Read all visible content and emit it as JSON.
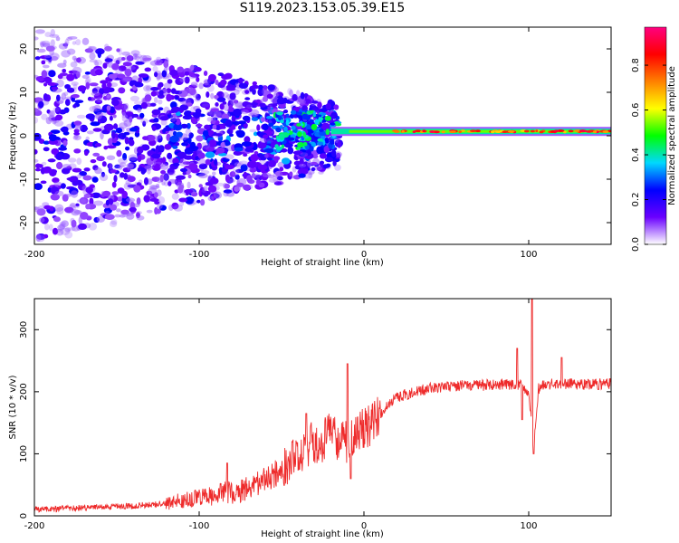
{
  "title": "S119.2023.153.05.39.E15",
  "chart_data": [
    {
      "type": "heatmap",
      "xlabel": "Height of straight line (km)",
      "ylabel": "Frequency (Hz)",
      "xlim": [
        -200,
        150
      ],
      "ylim": [
        -25,
        25
      ],
      "x_ticks": [
        -200,
        -100,
        0,
        100
      ],
      "y_ticks": [
        -20,
        -10,
        0,
        10,
        20
      ],
      "colorbar": {
        "label": "Normalized spectral amplitude",
        "range": [
          0.0,
          0.97
        ],
        "ticks": [
          0.0,
          0.2,
          0.4,
          0.6,
          0.8
        ],
        "colors": [
          "#ffffff",
          "#6a00ff",
          "#0000ff",
          "#00d8ff",
          "#00ff00",
          "#ffff00",
          "#ff8000",
          "#ff0000",
          "#ff0080"
        ]
      },
      "features": {
        "narrow_band_center_hz": 1,
        "narrow_band_x_start_km": -20,
        "diffuse_scatter_x_range_km": [
          -200,
          -20
        ]
      }
    },
    {
      "type": "line",
      "xlabel": "Height of straight line (km)",
      "ylabel": "SNR (10 * v/v)",
      "xlim": [
        -200,
        150
      ],
      "ylim": [
        0,
        350
      ],
      "x_ticks": [
        -200,
        -100,
        0,
        100
      ],
      "y_ticks": [
        0,
        100,
        200,
        300
      ],
      "series": [
        {
          "color": "#ee2b2b",
          "x": [
            -200,
            -180,
            -160,
            -140,
            -130,
            -120,
            -110,
            -100,
            -95,
            -90,
            -85,
            -80,
            -75,
            -70,
            -65,
            -60,
            -55,
            -50,
            -45,
            -40,
            -35,
            -30,
            -25,
            -20,
            -15,
            -10,
            -5,
            0,
            5,
            10,
            15,
            20,
            25,
            30,
            40,
            50,
            60,
            70,
            80,
            90,
            95,
            100,
            103,
            106,
            110,
            120,
            130,
            140,
            150
          ],
          "y": [
            10,
            12,
            14,
            16,
            18,
            20,
            25,
            28,
            30,
            35,
            40,
            35,
            40,
            45,
            50,
            60,
            65,
            75,
            90,
            100,
            110,
            120,
            120,
            140,
            120,
            120,
            130,
            140,
            150,
            165,
            180,
            190,
            195,
            200,
            205,
            208,
            210,
            210,
            212,
            212,
            210,
            200,
            105,
            205,
            212,
            213,
            212,
            212,
            213
          ]
        }
      ],
      "spikes": [
        {
          "x": -83,
          "y": 85
        },
        {
          "x": -35,
          "y": 165
        },
        {
          "x": -10,
          "y": 245
        },
        {
          "x": -8,
          "y": 60
        },
        {
          "x": 93,
          "y": 270
        },
        {
          "x": 96,
          "y": 155
        },
        {
          "x": 102,
          "y": 350
        },
        {
          "x": 103,
          "y": 100
        },
        {
          "x": 120,
          "y": 255
        }
      ]
    }
  ]
}
